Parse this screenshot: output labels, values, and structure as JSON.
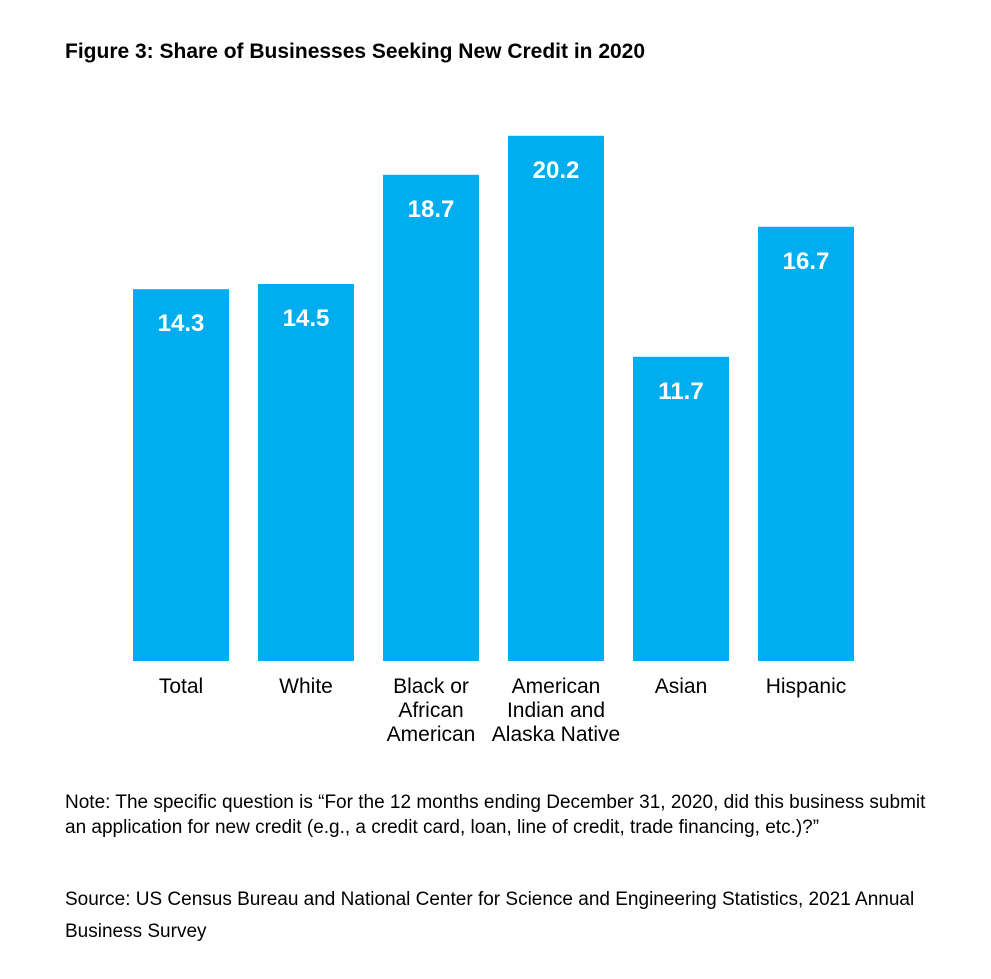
{
  "title": "Figure 3: Share of Businesses Seeking New Credit in 2020",
  "note": "Note: The specific question is “For the 12 months ending December 31, 2020, did this business submit an application for new credit (e.g., a credit card, loan, line of credit, trade financing, etc.)?”",
  "source": "Source: US Census Bureau and National Center for Science and Engineering Statistics, 2021 Annual Business Survey",
  "chart_data": {
    "type": "bar",
    "title": "Figure 3: Share of Businesses Seeking New Credit in 2020",
    "categories": [
      [
        "Total"
      ],
      [
        "White"
      ],
      [
        "Black or",
        "African",
        "American"
      ],
      [
        "American",
        "Indian and",
        "Alaska Native"
      ],
      [
        "Asian"
      ],
      [
        "Hispanic"
      ]
    ],
    "values": [
      14.3,
      14.5,
      18.7,
      20.2,
      11.7,
      16.7
    ],
    "data_labels": [
      "14.3",
      "14.5",
      "18.7",
      "20.2",
      "11.7",
      "16.7"
    ],
    "bar_color": "#00adee",
    "label_color": "#ffffff",
    "ylim": [
      0,
      20.2
    ],
    "grid": false,
    "legend": "none"
  }
}
